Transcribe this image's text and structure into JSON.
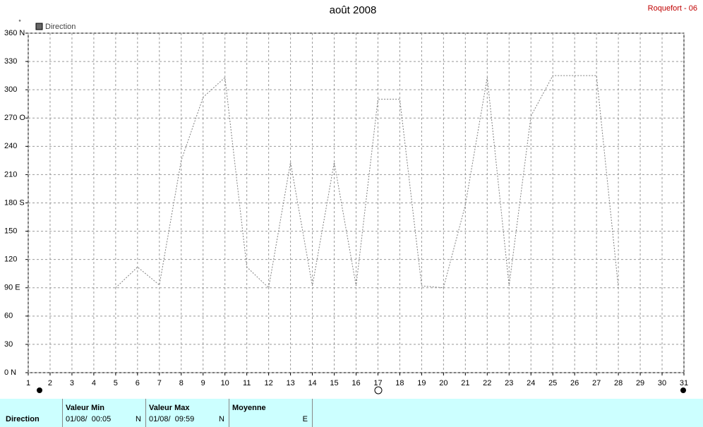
{
  "chart_data": {
    "type": "line",
    "title": "août 2008",
    "station": "Roquefort - 06",
    "ylabel": "°",
    "x": [
      5,
      6,
      7,
      8,
      9,
      10,
      11,
      12,
      13,
      14,
      15,
      16,
      17,
      18,
      19,
      20,
      21,
      22,
      23,
      24,
      25,
      26,
      27,
      28
    ],
    "series": [
      {
        "name": "Direction",
        "color": "#808080",
        "values": [
          90,
          112,
          93,
          225,
          292,
          313,
          112,
          90,
          223,
          92,
          223,
          92,
          290,
          290,
          92,
          90,
          178,
          313,
          92,
          272,
          315,
          315,
          315,
          90
        ]
      }
    ],
    "xlim": [
      1,
      31
    ],
    "xticks": [
      1,
      2,
      3,
      4,
      5,
      6,
      7,
      8,
      9,
      10,
      11,
      12,
      13,
      14,
      15,
      16,
      17,
      18,
      19,
      20,
      21,
      22,
      23,
      24,
      25,
      26,
      27,
      28,
      29,
      30,
      31
    ],
    "ylim": [
      0,
      360
    ],
    "yticks": [
      {
        "value": 0,
        "label": "0 N"
      },
      30,
      60,
      {
        "value": 90,
        "label": "90  E"
      },
      120,
      150,
      {
        "value": 180,
        "label": "180 S"
      },
      210,
      240,
      {
        "value": 270,
        "label": "270 O"
      },
      300,
      330,
      {
        "value": 360,
        "label": "360 N"
      }
    ],
    "grid": true
  },
  "summary": {
    "row_label": "Direction",
    "min": {
      "header": "Valeur Min",
      "date": "01/08/  00:05",
      "dir": "N"
    },
    "max": {
      "header": "Valeur Max",
      "date": "01/08/  09:59",
      "dir": "N"
    },
    "mean": {
      "header": "Moyenne",
      "dir": "E"
    }
  }
}
